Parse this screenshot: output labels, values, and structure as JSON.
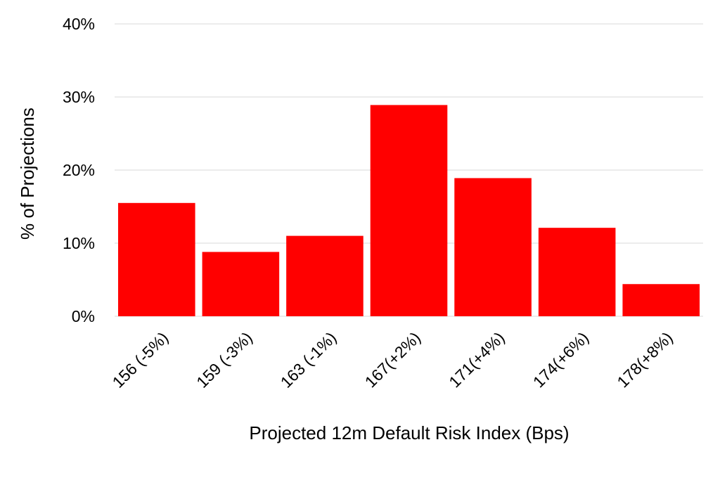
{
  "chart_data": {
    "type": "bar",
    "title": "",
    "xlabel": "Projected 12m Default Risk Index (Bps)",
    "ylabel": "% of Projections",
    "categories": [
      "156 (-5%)",
      "159 (-3%)",
      "163 (-1%)",
      "167(+2%)",
      "171(+4%)",
      "174(+6%)",
      "178(+8%)"
    ],
    "values": [
      15.5,
      8.8,
      11.0,
      28.9,
      18.9,
      12.1,
      4.4
    ],
    "ylim": [
      0,
      40
    ],
    "yticks": [
      0,
      10,
      20,
      30,
      40
    ],
    "ytick_labels": [
      "0%",
      "10%",
      "20%",
      "30%",
      "40%"
    ],
    "bar_color": "#ff0000",
    "grid": true,
    "legend": "none"
  }
}
